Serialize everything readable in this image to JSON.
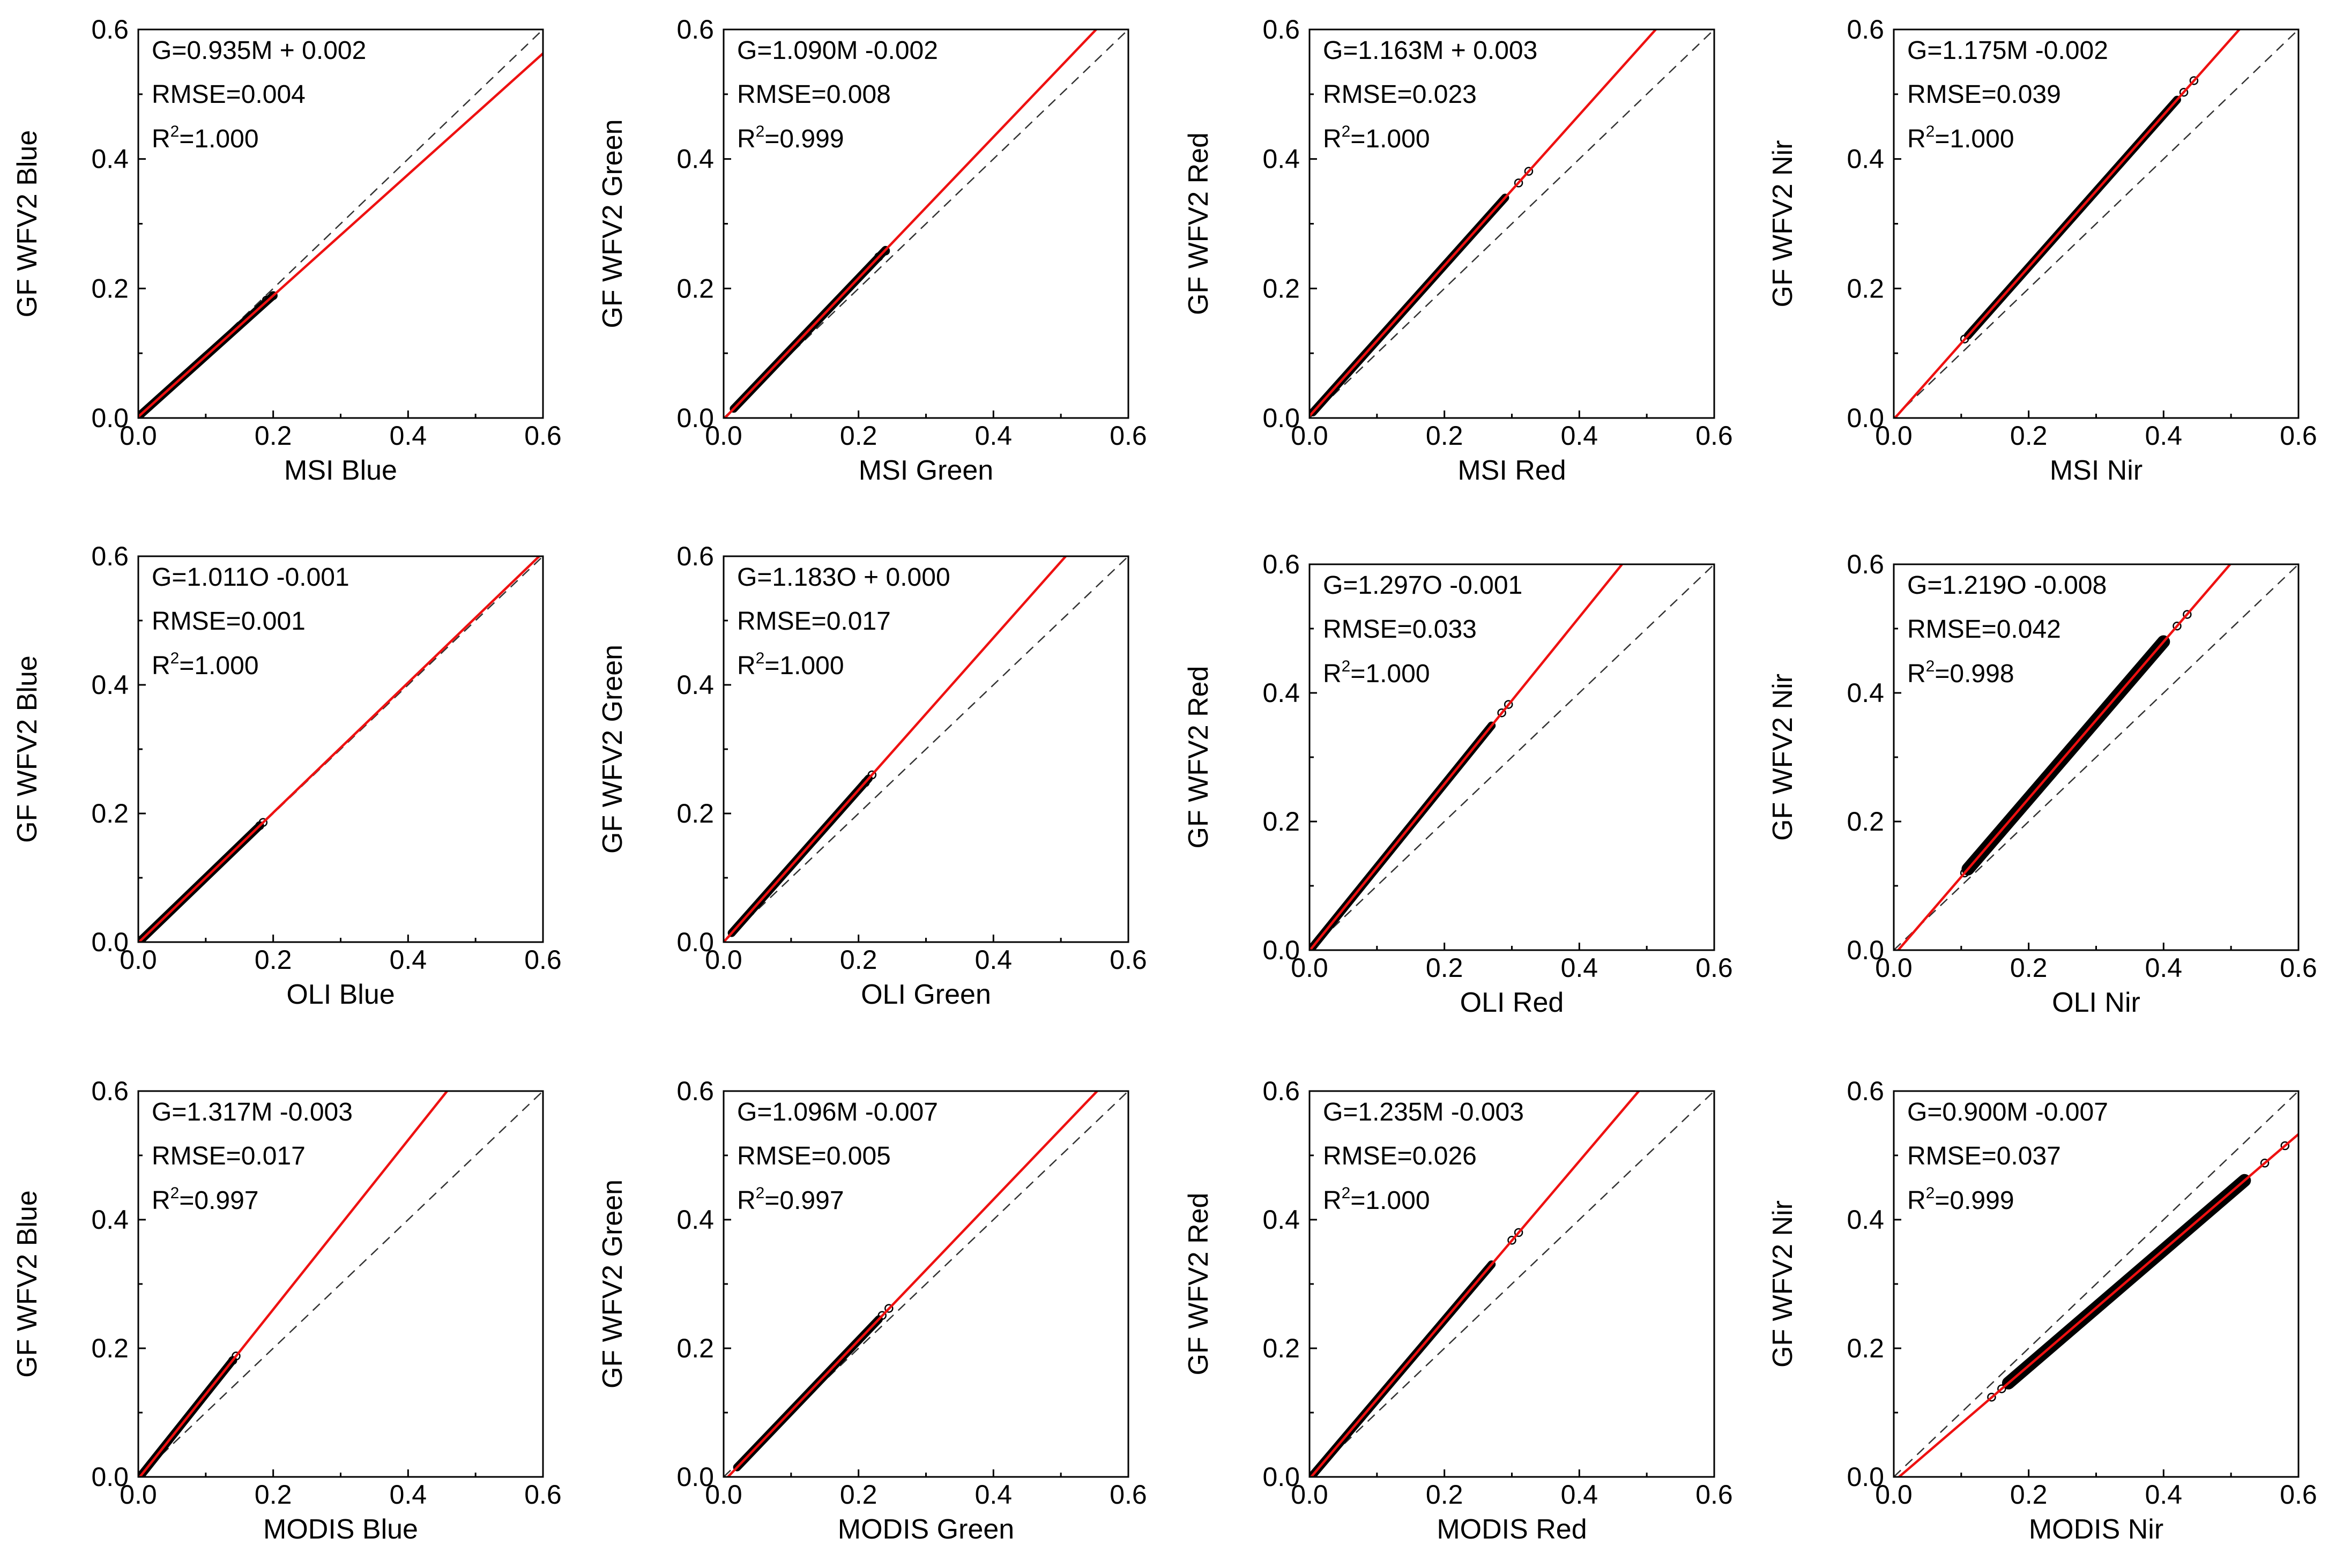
{
  "figure_title": "",
  "chart_data": [
    {
      "type": "scatter",
      "title": "",
      "xlabel": "MSI Blue",
      "ylabel": "GF WFV2 Blue",
      "xlim": [
        0,
        0.6
      ],
      "ylim": [
        0,
        0.6
      ],
      "ticks": [
        "0.0",
        "0.2",
        "0.4",
        "0.6"
      ],
      "equation": "G=0.935M + 0.002",
      "rmse": "RMSE=0.004",
      "r2_prefix": "R",
      "r2_sup": "2",
      "r2_value": "=1.000",
      "fit": {
        "slope": 0.935,
        "intercept": 0.002
      },
      "data_range": [
        0.002,
        0.2
      ],
      "endpoints": [
        [
          0.19,
          0.182
        ],
        [
          0.2,
          0.189
        ]
      ]
    },
    {
      "type": "scatter",
      "title": "",
      "xlabel": "MSI Green",
      "ylabel": "GF WFV2 Green",
      "xlim": [
        0,
        0.6
      ],
      "ylim": [
        0,
        0.6
      ],
      "ticks": [
        "0.0",
        "0.2",
        "0.4",
        "0.6"
      ],
      "equation": "G=1.090M -0.002",
      "rmse": "RMSE=0.008",
      "r2_prefix": "R",
      "r2_sup": "2",
      "r2_value": "=0.999",
      "fit": {
        "slope": 1.09,
        "intercept": -0.002
      },
      "data_range": [
        0.015,
        0.24
      ],
      "endpoints": [
        [
          0.23,
          0.249
        ],
        [
          0.24,
          0.258
        ]
      ]
    },
    {
      "type": "scatter",
      "title": "",
      "xlabel": "MSI Red",
      "ylabel": "GF WFV2 Red",
      "xlim": [
        0,
        0.6
      ],
      "ylim": [
        0,
        0.6
      ],
      "ticks": [
        "0.0",
        "0.2",
        "0.4",
        "0.6"
      ],
      "equation": "G=1.163M + 0.003",
      "rmse": "RMSE=0.023",
      "r2_prefix": "R",
      "r2_sup": "2",
      "r2_value": "=1.000",
      "fit": {
        "slope": 1.163,
        "intercept": 0.003
      },
      "data_range": [
        0.005,
        0.29
      ],
      "endpoints": [
        [
          0.31,
          0.363
        ],
        [
          0.325,
          0.381
        ]
      ]
    },
    {
      "type": "scatter",
      "title": "",
      "xlabel": "MSI Nir",
      "ylabel": "GF WFV2 Nir",
      "xlim": [
        0,
        0.6
      ],
      "ylim": [
        0,
        0.6
      ],
      "ticks": [
        "0.0",
        "0.2",
        "0.4",
        "0.6"
      ],
      "equation": "G=1.175M -0.002",
      "rmse": "RMSE=0.039",
      "r2_prefix": "R",
      "r2_sup": "2",
      "r2_value": "=1.000",
      "fit": {
        "slope": 1.175,
        "intercept": -0.002
      },
      "data_range": [
        0.11,
        0.42
      ],
      "endpoints": [
        [
          0.105,
          0.122
        ],
        [
          0.43,
          0.503
        ],
        [
          0.445,
          0.521
        ]
      ]
    },
    {
      "type": "scatter",
      "title": "",
      "xlabel": "OLI Blue",
      "ylabel": "GF WFV2 Blue",
      "xlim": [
        0,
        0.6
      ],
      "ylim": [
        0,
        0.6
      ],
      "ticks": [
        "0.0",
        "0.2",
        "0.4",
        "0.6"
      ],
      "equation": "G=1.011O -0.001",
      "rmse": "RMSE=0.001",
      "r2_prefix": "R",
      "r2_sup": "2",
      "r2_value": "=1.000",
      "fit": {
        "slope": 1.011,
        "intercept": -0.001
      },
      "data_range": [
        0.002,
        0.18
      ],
      "endpoints": [
        [
          0.18,
          0.181
        ],
        [
          0.185,
          0.186
        ]
      ]
    },
    {
      "type": "scatter",
      "title": "",
      "xlabel": "OLI Green",
      "ylabel": "GF WFV2 Green",
      "xlim": [
        0,
        0.6
      ],
      "ylim": [
        0,
        0.6
      ],
      "ticks": [
        "0.0",
        "0.2",
        "0.4",
        "0.6"
      ],
      "equation": "G=1.183O + 0.000",
      "rmse": "RMSE=0.017",
      "r2_prefix": "R",
      "r2_sup": "2",
      "r2_value": "=1.000",
      "fit": {
        "slope": 1.183,
        "intercept": 0.0
      },
      "data_range": [
        0.012,
        0.215
      ],
      "endpoints": [
        [
          0.21,
          0.248
        ],
        [
          0.22,
          0.26
        ]
      ]
    },
    {
      "type": "scatter",
      "title": "",
      "xlabel": "OLI Red",
      "ylabel": "GF WFV2 Red",
      "xlim": [
        0,
        0.6
      ],
      "ylim": [
        0,
        0.6
      ],
      "ticks": [
        "0.0",
        "0.2",
        "0.4",
        "0.6"
      ],
      "equation": "G=1.297O -0.001",
      "rmse": "RMSE=0.033",
      "r2_prefix": "R",
      "r2_sup": "2",
      "r2_value": "=1.000",
      "fit": {
        "slope": 1.297,
        "intercept": -0.001
      },
      "data_range": [
        0.005,
        0.27
      ],
      "endpoints": [
        [
          0.285,
          0.369
        ],
        [
          0.295,
          0.382
        ]
      ]
    },
    {
      "type": "scatter",
      "title": "",
      "xlabel": "OLI Nir",
      "ylabel": "GF WFV2 Nir",
      "xlim": [
        0,
        0.6
      ],
      "ylim": [
        0,
        0.6
      ],
      "ticks": [
        "0.0",
        "0.2",
        "0.4",
        "0.6"
      ],
      "equation": "G=1.219O -0.008",
      "rmse": "RMSE=0.042",
      "r2_prefix": "R",
      "r2_sup": "2",
      "r2_value": "=0.998",
      "fit": {
        "slope": 1.219,
        "intercept": -0.008
      },
      "data_range": [
        0.11,
        0.4
      ],
      "endpoints": [
        [
          0.105,
          0.12
        ],
        [
          0.42,
          0.504
        ],
        [
          0.435,
          0.522
        ]
      ]
    },
    {
      "type": "scatter",
      "title": "",
      "xlabel": "MODIS Blue",
      "ylabel": "GF WFV2 Blue",
      "xlim": [
        0,
        0.6
      ],
      "ylim": [
        0,
        0.6
      ],
      "ticks": [
        "0.0",
        "0.2",
        "0.4",
        "0.6"
      ],
      "equation": "G=1.317M -0.003",
      "rmse": "RMSE=0.017",
      "r2_prefix": "R",
      "r2_sup": "2",
      "r2_value": "=0.997",
      "fit": {
        "slope": 1.317,
        "intercept": -0.003
      },
      "data_range": [
        0.002,
        0.14
      ],
      "endpoints": [
        [
          0.14,
          0.181
        ],
        [
          0.145,
          0.188
        ]
      ]
    },
    {
      "type": "scatter",
      "title": "",
      "xlabel": "MODIS Green",
      "ylabel": "GF WFV2 Green",
      "xlim": [
        0,
        0.6
      ],
      "ylim": [
        0,
        0.6
      ],
      "ticks": [
        "0.0",
        "0.2",
        "0.4",
        "0.6"
      ],
      "equation": "G=1.096M -0.007",
      "rmse": "RMSE=0.005",
      "r2_prefix": "R",
      "r2_sup": "2",
      "r2_value": "=0.997",
      "fit": {
        "slope": 1.096,
        "intercept": -0.007
      },
      "data_range": [
        0.02,
        0.23
      ],
      "endpoints": [
        [
          0.235,
          0.251
        ],
        [
          0.245,
          0.262
        ]
      ]
    },
    {
      "type": "scatter",
      "title": "",
      "xlabel": "MODIS Red",
      "ylabel": "GF WFV2 Red",
      "xlim": [
        0,
        0.6
      ],
      "ylim": [
        0,
        0.6
      ],
      "ticks": [
        "0.0",
        "0.2",
        "0.4",
        "0.6"
      ],
      "equation": "G=1.235M -0.003",
      "rmse": "RMSE=0.026",
      "r2_prefix": "R",
      "r2_sup": "2",
      "r2_value": "=1.000",
      "fit": {
        "slope": 1.235,
        "intercept": -0.003
      },
      "data_range": [
        0.005,
        0.27
      ],
      "endpoints": [
        [
          0.3,
          0.368
        ],
        [
          0.31,
          0.38
        ]
      ]
    },
    {
      "type": "scatter",
      "title": "",
      "xlabel": "MODIS Nir",
      "ylabel": "GF WFV2 Nir",
      "xlim": [
        0,
        0.6
      ],
      "ylim": [
        0,
        0.6
      ],
      "ticks": [
        "0.0",
        "0.2",
        "0.4",
        "0.6"
      ],
      "equation": "G=0.900M -0.007",
      "rmse": "RMSE=0.037",
      "r2_prefix": "R",
      "r2_sup": "2",
      "r2_value": "=0.999",
      "fit": {
        "slope": 0.9,
        "intercept": -0.007
      },
      "data_range": [
        0.17,
        0.52
      ],
      "endpoints": [
        [
          0.145,
          0.124
        ],
        [
          0.16,
          0.137
        ],
        [
          0.55,
          0.488
        ],
        [
          0.58,
          0.515
        ]
      ]
    }
  ]
}
